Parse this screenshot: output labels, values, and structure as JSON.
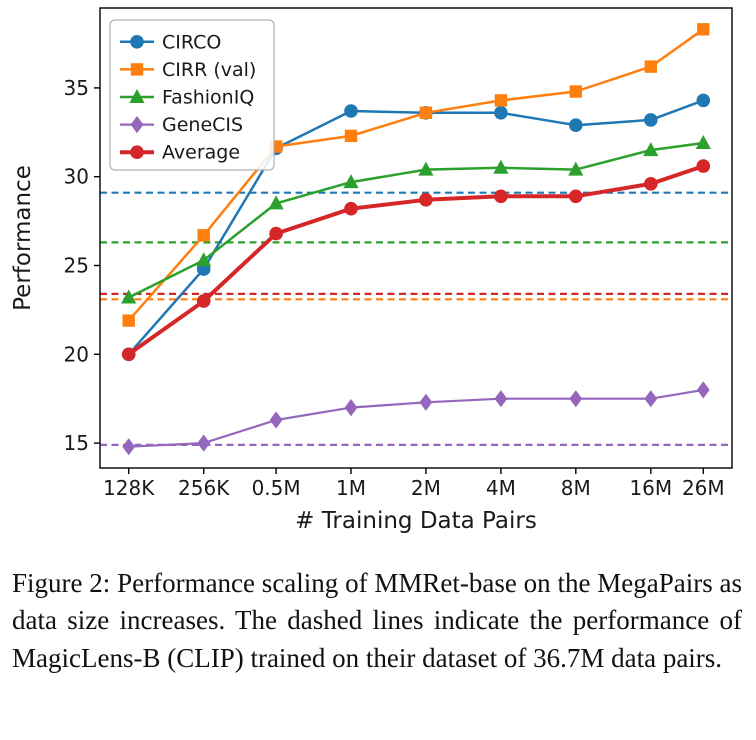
{
  "figure": {
    "caption": "Figure 2: Performance scaling of MMRet-base on the MegaPairs as data size increases. The dashed lines indicate the performance of MagicLens-B (CLIP) trained on their dataset of 36.7M data pairs."
  },
  "chart_data": {
    "type": "line",
    "title": "",
    "xlabel": "# Training Data Pairs",
    "ylabel": "Performance",
    "x_scale": "log",
    "categories": [
      "128K",
      "256K",
      "0.5M",
      "1M",
      "2M",
      "4M",
      "8M",
      "16M",
      "26M"
    ],
    "x_numeric": [
      0.128,
      0.256,
      0.5,
      1,
      2,
      4,
      8,
      16,
      26
    ],
    "ylim": [
      13.6,
      39.5
    ],
    "yticks": [
      15,
      20,
      25,
      30,
      35
    ],
    "grid": false,
    "legend_position": "upper left",
    "series": [
      {
        "name": "CIRCO",
        "color": "#1f77b4",
        "marker": "circle",
        "linewidth": 2.5,
        "values": [
          20.0,
          24.8,
          31.6,
          33.7,
          33.6,
          33.6,
          32.9,
          33.2,
          34.3
        ]
      },
      {
        "name": "CIRR (val)",
        "color": "#ff7f0e",
        "marker": "square",
        "linewidth": 2.5,
        "values": [
          21.9,
          26.7,
          31.7,
          32.3,
          33.6,
          34.3,
          34.8,
          36.2,
          38.3
        ]
      },
      {
        "name": "FashionIQ",
        "color": "#2ca02c",
        "marker": "triangle",
        "linewidth": 2.5,
        "values": [
          23.2,
          25.3,
          28.5,
          29.7,
          30.4,
          30.5,
          30.4,
          31.5,
          31.9
        ]
      },
      {
        "name": "GeneCIS",
        "color": "#9467bd",
        "marker": "diamond",
        "linewidth": 2.2,
        "values": [
          14.8,
          15.0,
          16.3,
          17.0,
          17.3,
          17.5,
          17.5,
          17.5,
          18.0
        ]
      },
      {
        "name": "Average",
        "color": "#d62728",
        "marker": "circle",
        "linewidth": 4.0,
        "values": [
          20.0,
          23.0,
          26.8,
          28.2,
          28.7,
          28.9,
          28.9,
          29.6,
          30.6
        ]
      }
    ],
    "baselines": [
      {
        "name": "CIRCO-baseline",
        "color": "#1f77b4",
        "value": 29.1
      },
      {
        "name": "FashionIQ-baseline",
        "color": "#2ca02c",
        "value": 26.3
      },
      {
        "name": "Average-baseline",
        "color": "#d62728",
        "value": 23.4
      },
      {
        "name": "CIRR-baseline",
        "color": "#ff7f0e",
        "value": 23.1
      },
      {
        "name": "GeneCIS-baseline",
        "color": "#9467bd",
        "value": 14.9
      }
    ]
  }
}
